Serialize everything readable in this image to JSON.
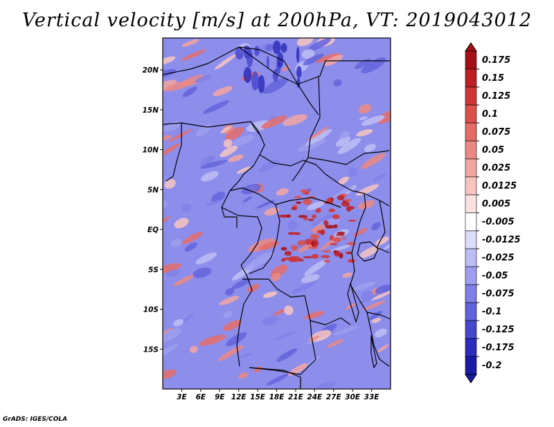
{
  "title": "Vertical velocity [m/s] at 200hPa, VT: 2019043012",
  "credit": "GrADS: IGES/COLA",
  "map": {
    "variable": "Vertical velocity",
    "units": "m/s",
    "level": "200hPa",
    "valid_time": "2019043012",
    "lon_range": [
      0,
      36
    ],
    "lat_range": [
      -20,
      24
    ],
    "lat_labels": [
      {
        "value": 20,
        "label": "20N"
      },
      {
        "value": 15,
        "label": "15N"
      },
      {
        "value": 10,
        "label": "10N"
      },
      {
        "value": 5,
        "label": "5N"
      },
      {
        "value": 0,
        "label": "EQ"
      },
      {
        "value": -5,
        "label": "5S"
      },
      {
        "value": -10,
        "label": "10S"
      },
      {
        "value": -15,
        "label": "15S"
      }
    ],
    "lon_labels": [
      {
        "value": 3,
        "label": "3E"
      },
      {
        "value": 6,
        "label": "6E"
      },
      {
        "value": 9,
        "label": "9E"
      },
      {
        "value": 12,
        "label": "12E"
      },
      {
        "value": 15,
        "label": "15E"
      },
      {
        "value": 18,
        "label": "18E"
      },
      {
        "value": 21,
        "label": "21E"
      },
      {
        "value": 24,
        "label": "24E"
      },
      {
        "value": 27,
        "label": "27E"
      },
      {
        "value": 30,
        "label": "30E"
      },
      {
        "value": 33,
        "label": "33E"
      }
    ],
    "updraft_region": "central Congo basin, 18E-30E, 5N-5S"
  },
  "colorbar": {
    "levels": [
      {
        "label": "0.175",
        "color": "#a50f15"
      },
      {
        "label": "0.15",
        "color": "#be1e24"
      },
      {
        "label": "0.125",
        "color": "#cf3436"
      },
      {
        "label": "0.1",
        "color": "#dc4f4b"
      },
      {
        "label": "0.075",
        "color": "#e56b66"
      },
      {
        "label": "0.05",
        "color": "#ec8883"
      },
      {
        "label": "0.025",
        "color": "#f2a5a1"
      },
      {
        "label": "0.0125",
        "color": "#f7c4c1"
      },
      {
        "label": "0.005",
        "color": "#fbe1df"
      },
      {
        "label": "-0.005",
        "color": "#ffffff"
      },
      {
        "label": "-0.0125",
        "color": "#dcdcfb"
      },
      {
        "label": "-0.025",
        "color": "#bdbdf5"
      },
      {
        "label": "-0.05",
        "color": "#9e9ef0"
      },
      {
        "label": "-0.075",
        "color": "#7f7fe8"
      },
      {
        "label": "-0.1",
        "color": "#6262dd"
      },
      {
        "label": "-0.125",
        "color": "#4646cf"
      },
      {
        "label": "-0.175",
        "color": "#2c2cbd"
      },
      {
        "label": "-0.2",
        "color": "#1a1aa6"
      }
    ],
    "top_arrow_color": "#a50f15",
    "bottom_arrow_color": "#1a1aa6"
  },
  "colors": {
    "warm_base": "#ee9a96",
    "cool_base": "#8c8cec",
    "border": "#000000"
  }
}
